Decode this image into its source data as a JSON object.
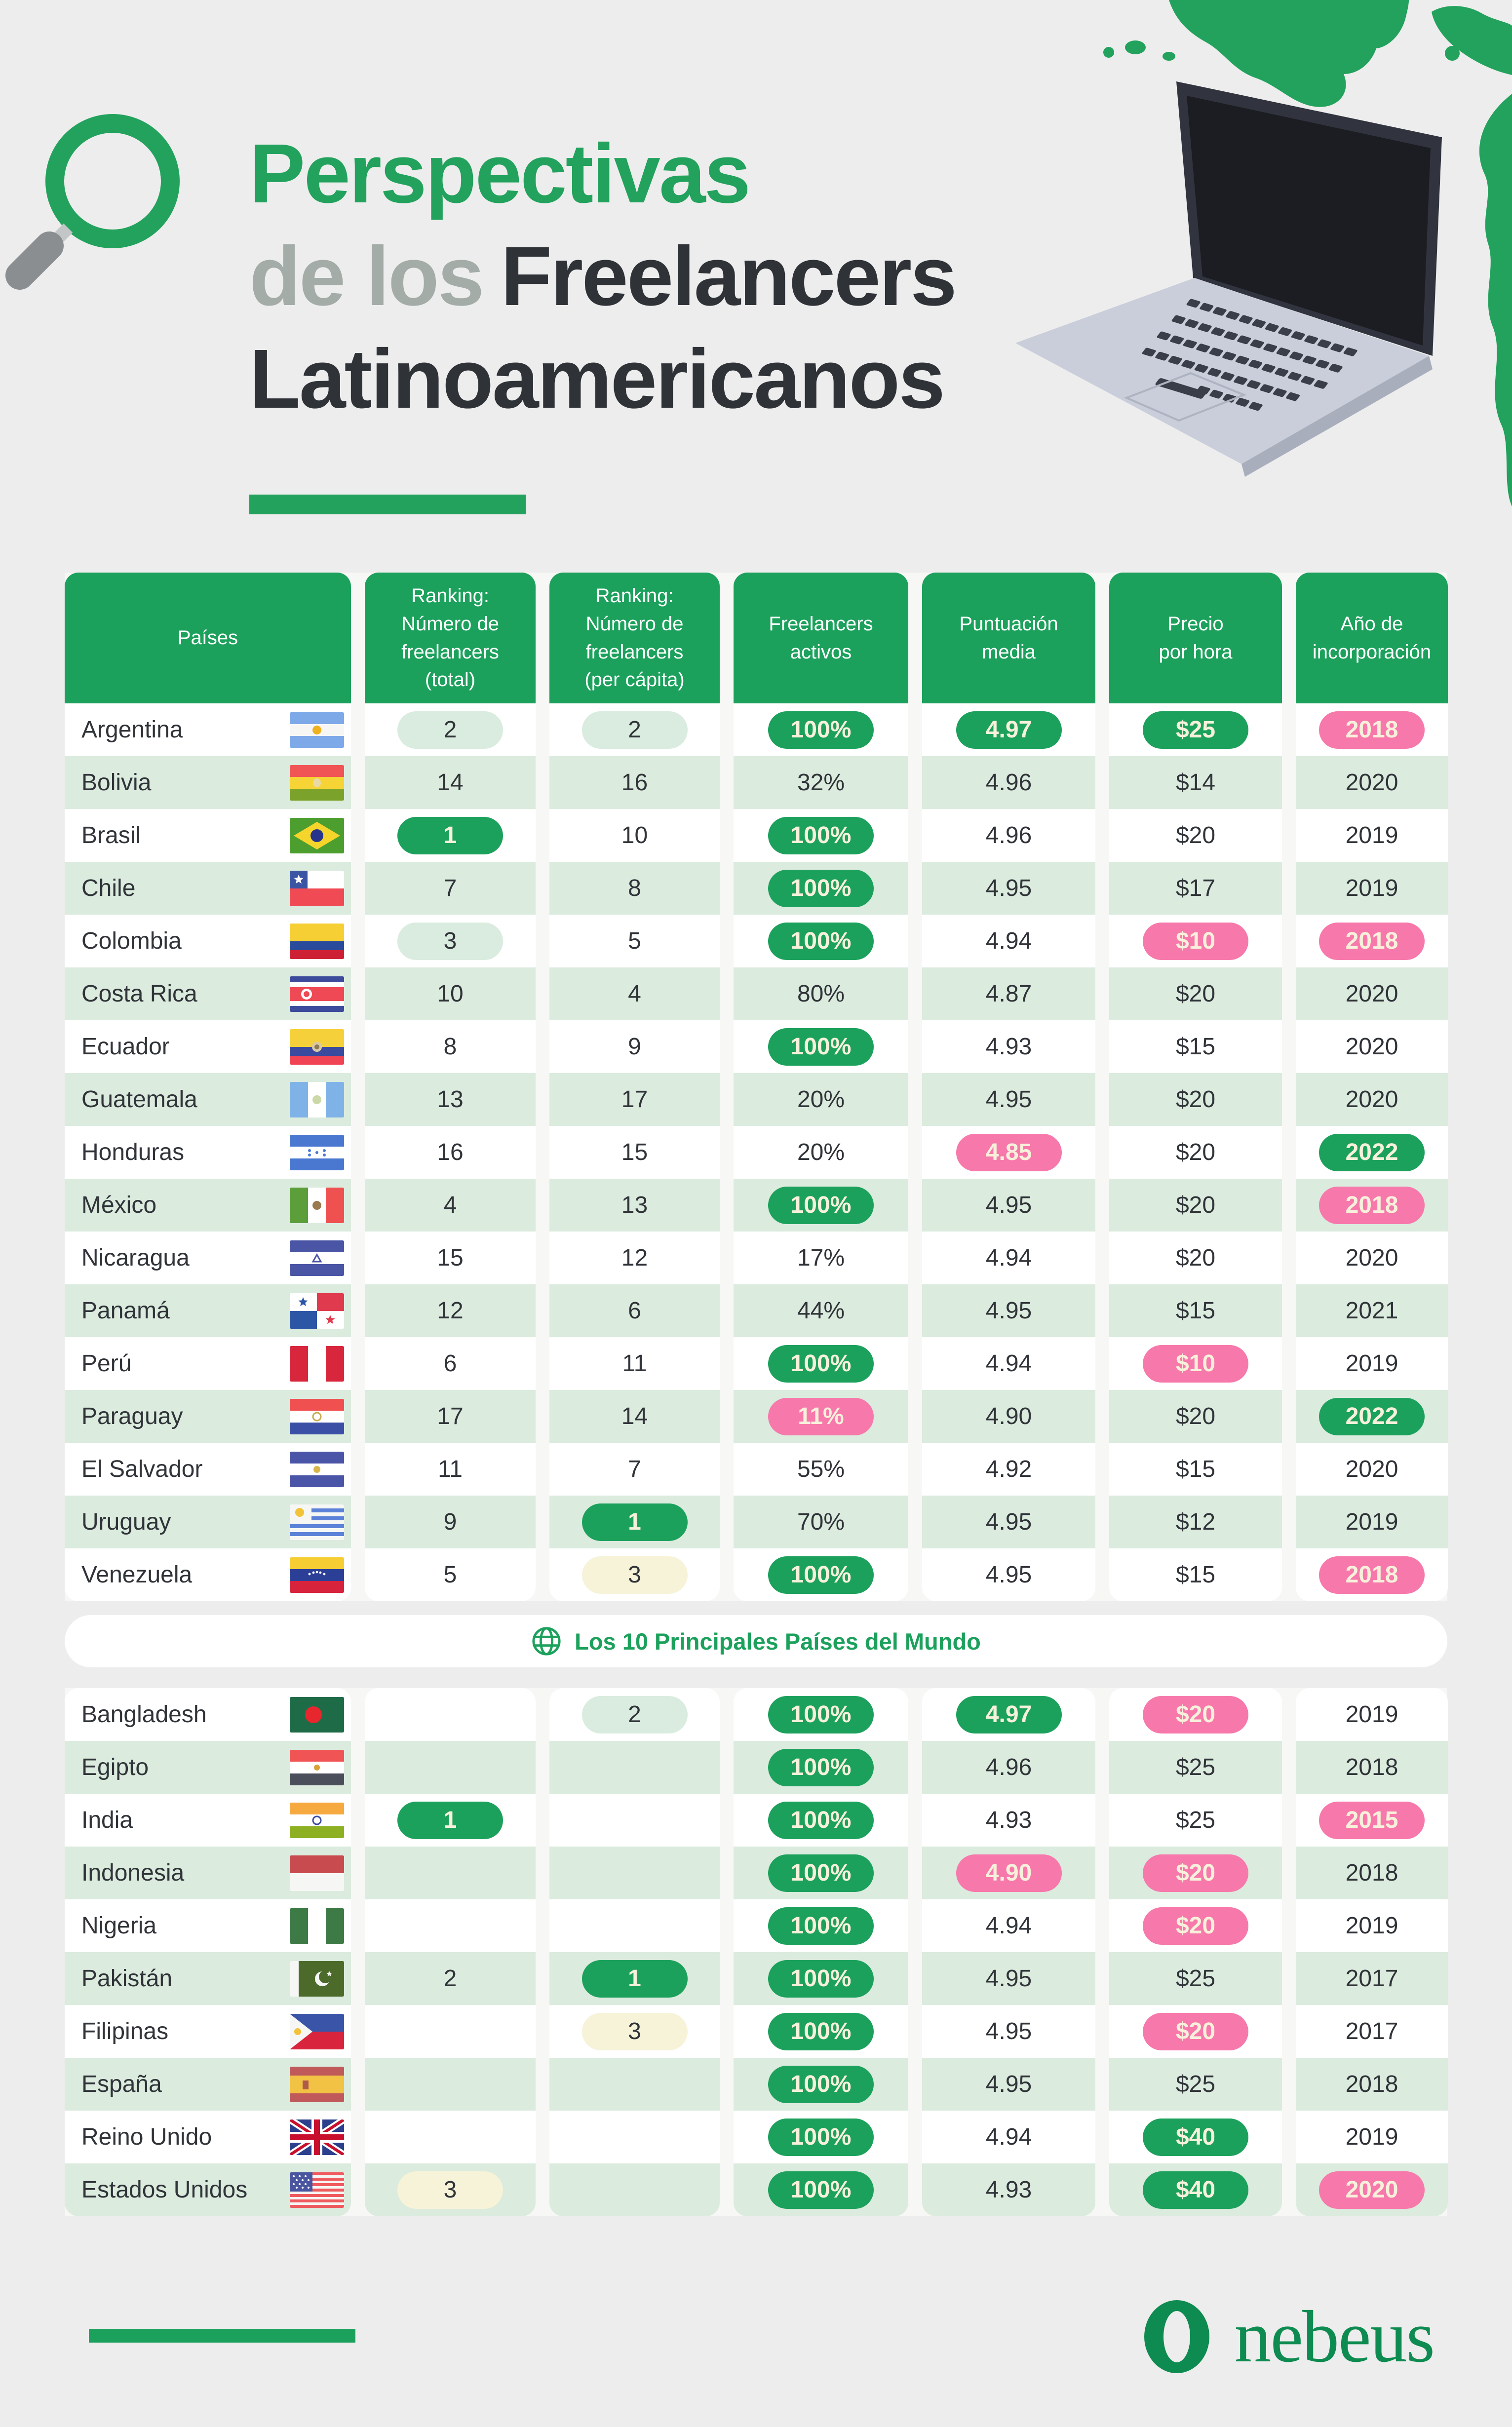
{
  "header": {
    "title_line1": "Perspectivas",
    "title_line2_gray": "de los",
    "title_line2_dark": "Freelancers",
    "title_line3": "Latinoamericanos"
  },
  "table": {
    "columns": [
      "Países",
      "Ranking:\nNúmero de\nfreelancers\n(total)",
      "Ranking:\nNúmero de\nfreelancers\n(per cápita)",
      "Freelancers\nactivos",
      "Puntuación\nmedia",
      "Precio\npor hora",
      "Año de\nincorporación"
    ]
  },
  "latam_rows": [
    {
      "country": "Argentina",
      "flag": "ar",
      "cells": [
        {
          "v": "2",
          "s": "lightgreen"
        },
        {
          "v": "2",
          "s": "lightgreen"
        },
        {
          "v": "100%",
          "s": "green"
        },
        {
          "v": "4.97",
          "s": "green"
        },
        {
          "v": "$25",
          "s": "green"
        },
        {
          "v": "2018",
          "s": "pink"
        }
      ]
    },
    {
      "country": "Bolivia",
      "flag": "bo",
      "cells": [
        {
          "v": "14",
          "s": "plain"
        },
        {
          "v": "16",
          "s": "plain"
        },
        {
          "v": "32%",
          "s": "plain"
        },
        {
          "v": "4.96",
          "s": "plain"
        },
        {
          "v": "$14",
          "s": "plain"
        },
        {
          "v": "2020",
          "s": "plain"
        }
      ]
    },
    {
      "country": "Brasil",
      "flag": "br",
      "cells": [
        {
          "v": "1",
          "s": "green"
        },
        {
          "v": "10",
          "s": "plain"
        },
        {
          "v": "100%",
          "s": "green"
        },
        {
          "v": "4.96",
          "s": "plain"
        },
        {
          "v": "$20",
          "s": "plain"
        },
        {
          "v": "2019",
          "s": "plain"
        }
      ]
    },
    {
      "country": "Chile",
      "flag": "cl",
      "cells": [
        {
          "v": "7",
          "s": "plain"
        },
        {
          "v": "8",
          "s": "plain"
        },
        {
          "v": "100%",
          "s": "green"
        },
        {
          "v": "4.95",
          "s": "plain"
        },
        {
          "v": "$17",
          "s": "plain"
        },
        {
          "v": "2019",
          "s": "plain"
        }
      ]
    },
    {
      "country": "Colombia",
      "flag": "co",
      "cells": [
        {
          "v": "3",
          "s": "lightgreen"
        },
        {
          "v": "5",
          "s": "plain"
        },
        {
          "v": "100%",
          "s": "green"
        },
        {
          "v": "4.94",
          "s": "plain"
        },
        {
          "v": "$10",
          "s": "pink"
        },
        {
          "v": "2018",
          "s": "pink"
        }
      ]
    },
    {
      "country": "Costa Rica",
      "flag": "cr",
      "cells": [
        {
          "v": "10",
          "s": "plain"
        },
        {
          "v": "4",
          "s": "plain"
        },
        {
          "v": "80%",
          "s": "plain"
        },
        {
          "v": "4.87",
          "s": "plain"
        },
        {
          "v": "$20",
          "s": "plain"
        },
        {
          "v": "2020",
          "s": "plain"
        }
      ]
    },
    {
      "country": "Ecuador",
      "flag": "ec",
      "cells": [
        {
          "v": "8",
          "s": "plain"
        },
        {
          "v": "9",
          "s": "plain"
        },
        {
          "v": "100%",
          "s": "green"
        },
        {
          "v": "4.93",
          "s": "plain"
        },
        {
          "v": "$15",
          "s": "plain"
        },
        {
          "v": "2020",
          "s": "plain"
        }
      ]
    },
    {
      "country": "Guatemala",
      "flag": "gt",
      "cells": [
        {
          "v": "13",
          "s": "plain"
        },
        {
          "v": "17",
          "s": "plain"
        },
        {
          "v": "20%",
          "s": "plain"
        },
        {
          "v": "4.95",
          "s": "plain"
        },
        {
          "v": "$20",
          "s": "plain"
        },
        {
          "v": "2020",
          "s": "plain"
        }
      ]
    },
    {
      "country": "Honduras",
      "flag": "hn",
      "cells": [
        {
          "v": "16",
          "s": "plain"
        },
        {
          "v": "15",
          "s": "plain"
        },
        {
          "v": "20%",
          "s": "plain"
        },
        {
          "v": "4.85",
          "s": "pink"
        },
        {
          "v": "$20",
          "s": "plain"
        },
        {
          "v": "2022",
          "s": "green"
        }
      ]
    },
    {
      "country": "México",
      "flag": "mx",
      "cells": [
        {
          "v": "4",
          "s": "plain"
        },
        {
          "v": "13",
          "s": "plain"
        },
        {
          "v": "100%",
          "s": "green"
        },
        {
          "v": "4.95",
          "s": "plain"
        },
        {
          "v": "$20",
          "s": "plain"
        },
        {
          "v": "2018",
          "s": "pink"
        }
      ]
    },
    {
      "country": "Nicaragua",
      "flag": "ni",
      "cells": [
        {
          "v": "15",
          "s": "plain"
        },
        {
          "v": "12",
          "s": "plain"
        },
        {
          "v": "17%",
          "s": "plain"
        },
        {
          "v": "4.94",
          "s": "plain"
        },
        {
          "v": "$20",
          "s": "plain"
        },
        {
          "v": "2020",
          "s": "plain"
        }
      ]
    },
    {
      "country": "Panamá",
      "flag": "pa",
      "cells": [
        {
          "v": "12",
          "s": "plain"
        },
        {
          "v": "6",
          "s": "plain"
        },
        {
          "v": "44%",
          "s": "plain"
        },
        {
          "v": "4.95",
          "s": "plain"
        },
        {
          "v": "$15",
          "s": "plain"
        },
        {
          "v": "2021",
          "s": "plain"
        }
      ]
    },
    {
      "country": "Perú",
      "flag": "pe",
      "cells": [
        {
          "v": "6",
          "s": "plain"
        },
        {
          "v": "11",
          "s": "plain"
        },
        {
          "v": "100%",
          "s": "green"
        },
        {
          "v": "4.94",
          "s": "plain"
        },
        {
          "v": "$10",
          "s": "pink"
        },
        {
          "v": "2019",
          "s": "plain"
        }
      ]
    },
    {
      "country": "Paraguay",
      "flag": "py",
      "cells": [
        {
          "v": "17",
          "s": "plain"
        },
        {
          "v": "14",
          "s": "plain"
        },
        {
          "v": "11%",
          "s": "pink"
        },
        {
          "v": "4.90",
          "s": "plain"
        },
        {
          "v": "$20",
          "s": "plain"
        },
        {
          "v": "2022",
          "s": "green"
        }
      ]
    },
    {
      "country": "El Salvador",
      "flag": "sv",
      "cells": [
        {
          "v": "11",
          "s": "plain"
        },
        {
          "v": "7",
          "s": "plain"
        },
        {
          "v": "55%",
          "s": "plain"
        },
        {
          "v": "4.92",
          "s": "plain"
        },
        {
          "v": "$15",
          "s": "plain"
        },
        {
          "v": "2020",
          "s": "plain"
        }
      ]
    },
    {
      "country": "Uruguay",
      "flag": "uy",
      "cells": [
        {
          "v": "9",
          "s": "plain"
        },
        {
          "v": "1",
          "s": "green"
        },
        {
          "v": "70%",
          "s": "plain"
        },
        {
          "v": "4.95",
          "s": "plain"
        },
        {
          "v": "$12",
          "s": "plain"
        },
        {
          "v": "2019",
          "s": "plain"
        }
      ]
    },
    {
      "country": "Venezuela",
      "flag": "ve",
      "cells": [
        {
          "v": "5",
          "s": "plain"
        },
        {
          "v": "3",
          "s": "cream"
        },
        {
          "v": "100%",
          "s": "green"
        },
        {
          "v": "4.95",
          "s": "plain"
        },
        {
          "v": "$15",
          "s": "plain"
        },
        {
          "v": "2018",
          "s": "pink"
        }
      ]
    }
  ],
  "separator": {
    "label": "Los 10 Principales Países del Mundo"
  },
  "world_rows": [
    {
      "country": "Bangladesh",
      "flag": "bd",
      "cells": [
        {
          "v": "",
          "s": "plain"
        },
        {
          "v": "2",
          "s": "lightgreen"
        },
        {
          "v": "100%",
          "s": "green"
        },
        {
          "v": "4.97",
          "s": "green"
        },
        {
          "v": "$20",
          "s": "pink"
        },
        {
          "v": "2019",
          "s": "plain"
        }
      ]
    },
    {
      "country": "Egipto",
      "flag": "eg",
      "cells": [
        {
          "v": "",
          "s": "plain"
        },
        {
          "v": "",
          "s": "plain"
        },
        {
          "v": "100%",
          "s": "green"
        },
        {
          "v": "4.96",
          "s": "plain"
        },
        {
          "v": "$25",
          "s": "plain"
        },
        {
          "v": "2018",
          "s": "plain"
        }
      ]
    },
    {
      "country": "India",
      "flag": "in",
      "cells": [
        {
          "v": "1",
          "s": "green"
        },
        {
          "v": "",
          "s": "plain"
        },
        {
          "v": "100%",
          "s": "green"
        },
        {
          "v": "4.93",
          "s": "plain"
        },
        {
          "v": "$25",
          "s": "plain"
        },
        {
          "v": "2015",
          "s": "pink"
        }
      ]
    },
    {
      "country": "Indonesia",
      "flag": "id",
      "cells": [
        {
          "v": "",
          "s": "plain"
        },
        {
          "v": "",
          "s": "plain"
        },
        {
          "v": "100%",
          "s": "green"
        },
        {
          "v": "4.90",
          "s": "pink"
        },
        {
          "v": "$20",
          "s": "pink"
        },
        {
          "v": "2018",
          "s": "plain"
        }
      ]
    },
    {
      "country": "Nigeria",
      "flag": "ng",
      "cells": [
        {
          "v": "",
          "s": "plain"
        },
        {
          "v": "",
          "s": "plain"
        },
        {
          "v": "100%",
          "s": "green"
        },
        {
          "v": "4.94",
          "s": "plain"
        },
        {
          "v": "$20",
          "s": "pink"
        },
        {
          "v": "2019",
          "s": "plain"
        }
      ]
    },
    {
      "country": "Pakistán",
      "flag": "pk",
      "cells": [
        {
          "v": "2",
          "s": "plain"
        },
        {
          "v": "1",
          "s": "green"
        },
        {
          "v": "100%",
          "s": "green"
        },
        {
          "v": "4.95",
          "s": "plain"
        },
        {
          "v": "$25",
          "s": "plain"
        },
        {
          "v": "2017",
          "s": "plain"
        }
      ]
    },
    {
      "country": "Filipinas",
      "flag": "ph",
      "cells": [
        {
          "v": "",
          "s": "plain"
        },
        {
          "v": "3",
          "s": "cream"
        },
        {
          "v": "100%",
          "s": "green"
        },
        {
          "v": "4.95",
          "s": "plain"
        },
        {
          "v": "$20",
          "s": "pink"
        },
        {
          "v": "2017",
          "s": "plain"
        }
      ]
    },
    {
      "country": "España",
      "flag": "es",
      "cells": [
        {
          "v": "",
          "s": "plain"
        },
        {
          "v": "",
          "s": "plain"
        },
        {
          "v": "100%",
          "s": "green"
        },
        {
          "v": "4.95",
          "s": "plain"
        },
        {
          "v": "$25",
          "s": "plain"
        },
        {
          "v": "2018",
          "s": "plain"
        }
      ]
    },
    {
      "country": "Reino Unido",
      "flag": "gb",
      "cells": [
        {
          "v": "",
          "s": "plain"
        },
        {
          "v": "",
          "s": "plain"
        },
        {
          "v": "100%",
          "s": "green"
        },
        {
          "v": "4.94",
          "s": "plain"
        },
        {
          "v": "$40",
          "s": "green"
        },
        {
          "v": "2019",
          "s": "plain"
        }
      ]
    },
    {
      "country": "Estados Unidos",
      "flag": "us",
      "cells": [
        {
          "v": "3",
          "s": "cream"
        },
        {
          "v": "",
          "s": "plain"
        },
        {
          "v": "100%",
          "s": "green"
        },
        {
          "v": "4.93",
          "s": "plain"
        },
        {
          "v": "$40",
          "s": "green"
        },
        {
          "v": "2020",
          "s": "pink"
        }
      ]
    }
  ],
  "footer": {
    "brand": "nebeus"
  },
  "colors": {
    "accent_green": "#1CA15C",
    "pink": "#F778AB",
    "light_green_pill": "#D9ECDF",
    "cream_pill": "#F6F3D8",
    "row_green": "#DBEBDE",
    "ivory_text": "#F7F1DB",
    "brand_green": "#0E8B50",
    "page_bg": "#EDEDED"
  }
}
